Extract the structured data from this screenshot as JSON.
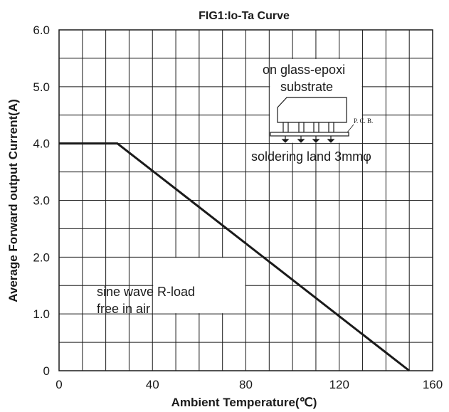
{
  "chart_data": {
    "type": "line",
    "title": "FIG1:Io-Ta Curve",
    "xlabel": "Ambient Temperature(℃)",
    "ylabel": "Average Forward output Current(A)",
    "xlim": [
      0,
      160
    ],
    "ylim": [
      0,
      6.0
    ],
    "grid": true,
    "x_ticks": [
      0,
      40,
      80,
      120,
      160
    ],
    "x_tick_labels": [
      "0",
      "40",
      "80",
      "120",
      "160"
    ],
    "y_ticks": [
      0,
      1.0,
      2.0,
      3.0,
      4.0,
      5.0,
      6.0
    ],
    "y_tick_labels": [
      "0",
      "1.0",
      "2.0",
      "3.0",
      "4.0",
      "5.0",
      "6.0"
    ],
    "series": [
      {
        "x": [
          0,
          25,
          150
        ],
        "y": [
          4.0,
          4.0,
          0
        ]
      }
    ],
    "annotations": {
      "load_note_line1": "sine wave R-load",
      "load_note_line2": "free in air",
      "substrate_line1": "on glass-epoxi",
      "substrate_line2": "substrate",
      "pcb_label": "P. C. B.",
      "land_label": "soldering land 3mmφ"
    },
    "colors": {
      "line": "#1a1a1a",
      "grid": "#1a1a1a",
      "background": "#ffffff"
    }
  }
}
